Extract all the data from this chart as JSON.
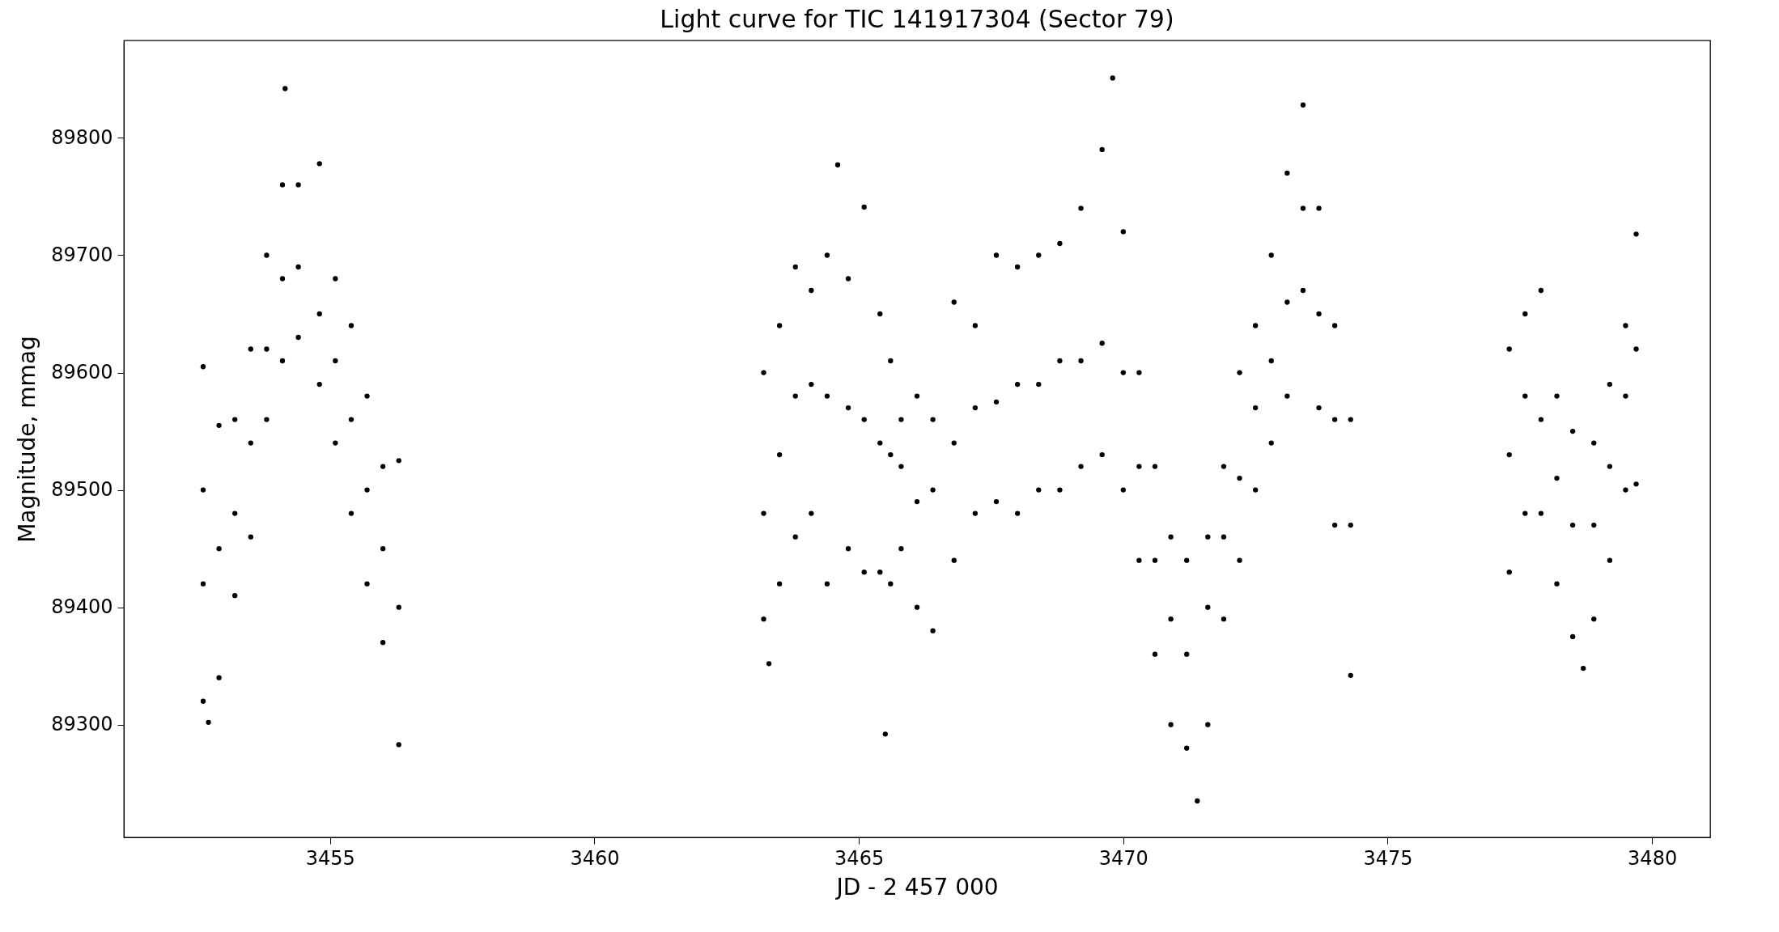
{
  "chart_data": {
    "type": "scatter",
    "title": "Light curve for TIC 141917304 (Sector 79)",
    "xlabel": "JD - 2 457 000",
    "ylabel": "Magnitude, mmag",
    "xlim": [
      3451.1,
      3481.1
    ],
    "xticks": [
      3455,
      3460,
      3465,
      3470,
      3475,
      3480
    ],
    "ylim": [
      89204,
      89883
    ],
    "yticks": [
      89300,
      89400,
      89500,
      89600,
      89700,
      89800
    ],
    "grid": false,
    "marker": "circle",
    "series": [
      {
        "color": "#000000",
        "x": [
          3452.6,
          3452.6,
          3452.6,
          3452.6,
          3452.7,
          3452.9,
          3452.9,
          3452.9,
          3453.2,
          3453.2,
          3453.2,
          3453.5,
          3453.5,
          3453.5,
          3453.8,
          3453.8,
          3453.8,
          3454.1,
          3454.1,
          3454.1,
          3454.15,
          3454.4,
          3454.4,
          3454.4,
          3454.8,
          3454.8,
          3454.8,
          3455.1,
          3455.1,
          3455.1,
          3455.4,
          3455.4,
          3455.4,
          3455.7,
          3455.7,
          3455.7,
          3456.0,
          3456.0,
          3456.0,
          3456.3,
          3456.3,
          3456.3,
          3463.2,
          3463.2,
          3463.2,
          3463.3,
          3463.5,
          3463.5,
          3463.5,
          3463.8,
          3463.8,
          3463.8,
          3464.1,
          3464.1,
          3464.1,
          3464.4,
          3464.4,
          3464.4,
          3464.6,
          3464.8,
          3464.8,
          3464.8,
          3465.1,
          3465.1,
          3465.1,
          3465.4,
          3465.4,
          3465.4,
          3465.5,
          3465.6,
          3465.6,
          3465.6,
          3465.8,
          3465.8,
          3465.8,
          3466.1,
          3466.1,
          3466.1,
          3466.4,
          3466.4,
          3466.4,
          3466.8,
          3466.8,
          3466.8,
          3467.2,
          3467.2,
          3467.2,
          3467.6,
          3467.6,
          3467.6,
          3468.0,
          3468.0,
          3468.0,
          3468.4,
          3468.4,
          3468.4,
          3468.8,
          3468.8,
          3468.8,
          3469.2,
          3469.2,
          3469.2,
          3469.6,
          3469.6,
          3469.6,
          3469.8,
          3470.0,
          3470.0,
          3470.0,
          3470.3,
          3470.3,
          3470.3,
          3470.6,
          3470.6,
          3470.6,
          3470.9,
          3470.9,
          3470.9,
          3471.2,
          3471.2,
          3471.2,
          3471.4,
          3471.6,
          3471.6,
          3471.6,
          3471.9,
          3471.9,
          3471.9,
          3472.2,
          3472.2,
          3472.2,
          3472.5,
          3472.5,
          3472.5,
          3472.8,
          3472.8,
          3472.8,
          3473.1,
          3473.1,
          3473.1,
          3473.4,
          3473.4,
          3473.4,
          3473.7,
          3473.7,
          3473.7,
          3474.0,
          3474.0,
          3474.0,
          3474.3,
          3474.3,
          3474.3,
          3477.3,
          3477.3,
          3477.3,
          3477.6,
          3477.6,
          3477.6,
          3477.9,
          3477.9,
          3477.9,
          3478.2,
          3478.2,
          3478.2,
          3478.5,
          3478.5,
          3478.5,
          3478.7,
          3478.9,
          3478.9,
          3478.9,
          3479.2,
          3479.2,
          3479.2,
          3479.5,
          3479.5,
          3479.5,
          3479.7,
          3479.7,
          3479.7
        ],
        "values": [
          89420,
          89500,
          89320,
          89605,
          89302,
          89450,
          89555,
          89340,
          89480,
          89560,
          89410,
          89540,
          89620,
          89460,
          89620,
          89700,
          89560,
          89680,
          89760,
          89610,
          89842,
          89690,
          89760,
          89630,
          89650,
          89778,
          89590,
          89610,
          89680,
          89540,
          89560,
          89640,
          89480,
          89500,
          89580,
          89420,
          89450,
          89520,
          89370,
          89400,
          89525,
          89283,
          89480,
          89600,
          89390,
          89352,
          89530,
          89640,
          89420,
          89580,
          89690,
          89460,
          89590,
          89670,
          89480,
          89580,
          89700,
          89420,
          89777,
          89570,
          89680,
          89450,
          89560,
          89741,
          89430,
          89540,
          89650,
          89430,
          89292,
          89530,
          89610,
          89420,
          89520,
          89560,
          89450,
          89490,
          89580,
          89400,
          89500,
          89560,
          89380,
          89540,
          89660,
          89440,
          89570,
          89640,
          89480,
          89575,
          89700,
          89490,
          89590,
          89690,
          89480,
          89590,
          89700,
          89500,
          89610,
          89710,
          89500,
          89610,
          89740,
          89520,
          89625,
          89790,
          89530,
          89851,
          89600,
          89720,
          89500,
          89520,
          89600,
          89440,
          89440,
          89520,
          89360,
          89390,
          89460,
          89300,
          89360,
          89440,
          89280,
          89235,
          89400,
          89460,
          89300,
          89460,
          89520,
          89390,
          89510,
          89600,
          89440,
          89570,
          89640,
          89500,
          89610,
          89700,
          89540,
          89660,
          89770,
          89580,
          89740,
          89828,
          89670,
          89650,
          89740,
          89570,
          89560,
          89640,
          89470,
          89470,
          89560,
          89342,
          89530,
          89620,
          89430,
          89580,
          89650,
          89480,
          89560,
          89670,
          89480,
          89510,
          89580,
          89420,
          89470,
          89550,
          89375,
          89348,
          89470,
          89540,
          89390,
          89520,
          89590,
          89440,
          89580,
          89640,
          89500,
          89620,
          89718,
          89505
        ]
      }
    ]
  }
}
